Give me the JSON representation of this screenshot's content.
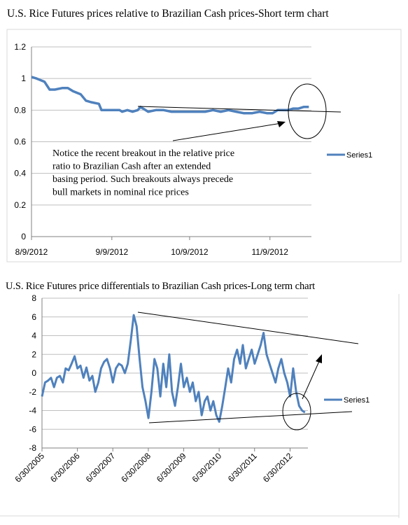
{
  "chart_data": [
    {
      "type": "line",
      "title": "U.S. Rice Futures prices relative to Brazilian Cash prices-Short term chart",
      "x_start": "8/9/2012",
      "x_end": "11/25/2012",
      "x_ticks": [
        "8/9/2012",
        "9/9/2012",
        "10/9/2012",
        "11/9/2012"
      ],
      "ylim": [
        0,
        1.2
      ],
      "y_ticks": [
        "0",
        "0.2",
        "0.4",
        "0.6",
        "0.8",
        "1",
        "1.2"
      ],
      "grid": "horizontal",
      "legend": "right",
      "annotation": [
        "Notice the recent breakout in the relative price",
        "ratio to Brazilian Cash after an extended",
        "basing period. Such breakouts always precede",
        "bull markets in nominal rice prices"
      ],
      "series": [
        {
          "name": "Series1",
          "color": "#4f81bd",
          "points": [
            [
              "8/9/2012",
              1.01
            ],
            [
              "8/11/2012",
              1.0
            ],
            [
              "8/14/2012",
              0.98
            ],
            [
              "8/16/2012",
              0.93
            ],
            [
              "8/18/2012",
              0.93
            ],
            [
              "8/21/2012",
              0.94
            ],
            [
              "8/23/2012",
              0.94
            ],
            [
              "8/25/2012",
              0.92
            ],
            [
              "8/28/2012",
              0.9
            ],
            [
              "8/30/2012",
              0.86
            ],
            [
              "9/1/2012",
              0.85
            ],
            [
              "9/4/2012",
              0.84
            ],
            [
              "9/5/2012",
              0.8
            ],
            [
              "9/9/2012",
              0.8
            ],
            [
              "9/12/2012",
              0.8
            ],
            [
              "9/13/2012",
              0.79
            ],
            [
              "9/15/2012",
              0.8
            ],
            [
              "9/17/2012",
              0.79
            ],
            [
              "9/19/2012",
              0.8
            ],
            [
              "9/20/2012",
              0.82
            ],
            [
              "9/22/2012",
              0.8
            ],
            [
              "9/23/2012",
              0.79
            ],
            [
              "9/26/2012",
              0.8
            ],
            [
              "9/29/2012",
              0.8
            ],
            [
              "10/2/2012",
              0.79
            ],
            [
              "10/5/2012",
              0.79
            ],
            [
              "10/9/2012",
              0.79
            ],
            [
              "10/12/2012",
              0.79
            ],
            [
              "10/15/2012",
              0.79
            ],
            [
              "10/18/2012",
              0.8
            ],
            [
              "10/21/2012",
              0.79
            ],
            [
              "10/24/2012",
              0.8
            ],
            [
              "10/27/2012",
              0.79
            ],
            [
              "10/30/2012",
              0.78
            ],
            [
              "11/2/2012",
              0.78
            ],
            [
              "11/5/2012",
              0.79
            ],
            [
              "11/8/2012",
              0.78
            ],
            [
              "11/10/2012",
              0.78
            ],
            [
              "11/12/2012",
              0.8
            ],
            [
              "11/14/2012",
              0.8
            ],
            [
              "11/16/2012",
              0.8
            ],
            [
              "11/18/2012",
              0.81
            ],
            [
              "11/20/2012",
              0.81
            ],
            [
              "11/22/2012",
              0.82
            ],
            [
              "11/24/2012",
              0.82
            ]
          ]
        }
      ]
    },
    {
      "type": "line",
      "title": "U.S. Rice Futures price differentials to Brazilian Cash prices-Long term chart",
      "x_start": "6/30/2005",
      "x_end": "12/31/2012",
      "x_ticks": [
        "6/30/2005",
        "6/30/2006",
        "6/30/2007",
        "6/30/2008",
        "6/30/2009",
        "6/30/2010",
        "6/30/2011",
        "6/30/2012"
      ],
      "ylim": [
        -8,
        8
      ],
      "y_ticks": [
        "-8",
        "-6",
        "-4",
        "-2",
        "0",
        "2",
        "4",
        "6",
        "8"
      ],
      "grid": "horizontal",
      "legend": "right",
      "series": [
        {
          "name": "Series1",
          "color": "#4f81bd",
          "points": [
            [
              "6/30/2005",
              -2.5
            ],
            [
              "8/1/2005",
              -1.0
            ],
            [
              "9/1/2005",
              -0.8
            ],
            [
              "10/1/2005",
              -0.5
            ],
            [
              "11/1/2005",
              -1.5
            ],
            [
              "12/1/2005",
              -0.5
            ],
            [
              "1/1/2006",
              -0.3
            ],
            [
              "2/1/2006",
              -1.0
            ],
            [
              "3/1/2006",
              0.5
            ],
            [
              "4/1/2006",
              0.3
            ],
            [
              "5/1/2006",
              1.0
            ],
            [
              "6/1/2006",
              1.8
            ],
            [
              "7/1/2006",
              0.5
            ],
            [
              "8/1/2006",
              0.8
            ],
            [
              "9/1/2006",
              -0.5
            ],
            [
              "10/1/2006",
              0.6
            ],
            [
              "11/1/2006",
              -0.8
            ],
            [
              "12/1/2006",
              -0.3
            ],
            [
              "1/1/2007",
              -2.0
            ],
            [
              "2/1/2007",
              -1.0
            ],
            [
              "3/1/2007",
              0.5
            ],
            [
              "4/1/2007",
              1.2
            ],
            [
              "5/1/2007",
              1.5
            ],
            [
              "6/1/2007",
              0.5
            ],
            [
              "7/1/2007",
              -1.0
            ],
            [
              "8/1/2007",
              0.5
            ],
            [
              "9/1/2007",
              1.0
            ],
            [
              "10/1/2007",
              0.8
            ],
            [
              "11/1/2007",
              0.0
            ],
            [
              "12/1/2007",
              1.0
            ],
            [
              "1/1/2008",
              3.5
            ],
            [
              "2/1/2008",
              6.2
            ],
            [
              "3/1/2008",
              5.0
            ],
            [
              "4/1/2008",
              1.5
            ],
            [
              "5/1/2008",
              -1.5
            ],
            [
              "6/1/2008",
              -3.0
            ],
            [
              "7/1/2008",
              -4.8
            ],
            [
              "8/1/2008",
              -2.0
            ],
            [
              "9/1/2008",
              1.5
            ],
            [
              "10/1/2008",
              0.5
            ],
            [
              "11/1/2008",
              -2.5
            ],
            [
              "12/1/2008",
              1.0
            ],
            [
              "1/1/2009",
              -1.5
            ],
            [
              "2/1/2009",
              2.0
            ],
            [
              "3/1/2009",
              -2.0
            ],
            [
              "4/1/2009",
              -3.5
            ],
            [
              "5/1/2009",
              -1.5
            ],
            [
              "6/1/2009",
              1.0
            ],
            [
              "7/1/2009",
              -1.5
            ],
            [
              "8/1/2009",
              -0.5
            ],
            [
              "9/1/2009",
              -2.0
            ],
            [
              "10/1/2009",
              -1.0
            ],
            [
              "11/1/2009",
              -3.0
            ],
            [
              "12/1/2009",
              -2.0
            ],
            [
              "1/1/2010",
              -4.5
            ],
            [
              "2/1/2010",
              -3.0
            ],
            [
              "3/1/2010",
              -2.5
            ],
            [
              "4/1/2010",
              -4.0
            ],
            [
              "5/1/2010",
              -3.0
            ],
            [
              "6/1/2010",
              -4.5
            ],
            [
              "7/1/2010",
              -5.2
            ],
            [
              "8/1/2010",
              -3.5
            ],
            [
              "9/1/2010",
              -1.5
            ],
            [
              "10/1/2010",
              0.5
            ],
            [
              "11/1/2010",
              -1.0
            ],
            [
              "12/1/2010",
              1.5
            ],
            [
              "1/1/2011",
              2.5
            ],
            [
              "2/1/2011",
              1.0
            ],
            [
              "3/1/2011",
              3.0
            ],
            [
              "4/1/2011",
              0.5
            ],
            [
              "5/1/2011",
              1.5
            ],
            [
              "6/1/2011",
              2.5
            ],
            [
              "7/1/2011",
              1.0
            ],
            [
              "8/1/2011",
              2.0
            ],
            [
              "9/1/2011",
              3.0
            ],
            [
              "10/1/2011",
              4.3
            ],
            [
              "11/1/2011",
              2.0
            ],
            [
              "12/1/2011",
              1.0
            ],
            [
              "1/1/2012",
              0.0
            ],
            [
              "2/1/2012",
              -1.0
            ],
            [
              "3/1/2012",
              0.5
            ],
            [
              "4/1/2012",
              1.5
            ],
            [
              "5/1/2012",
              0.0
            ],
            [
              "6/1/2012",
              -1.0
            ],
            [
              "7/1/2012",
              -2.5
            ],
            [
              "8/1/2012",
              0.5
            ],
            [
              "9/1/2012",
              -2.0
            ],
            [
              "10/1/2012",
              -3.5
            ],
            [
              "11/1/2012",
              -4.0
            ],
            [
              "12/1/2012",
              -4.2
            ]
          ]
        }
      ]
    }
  ]
}
